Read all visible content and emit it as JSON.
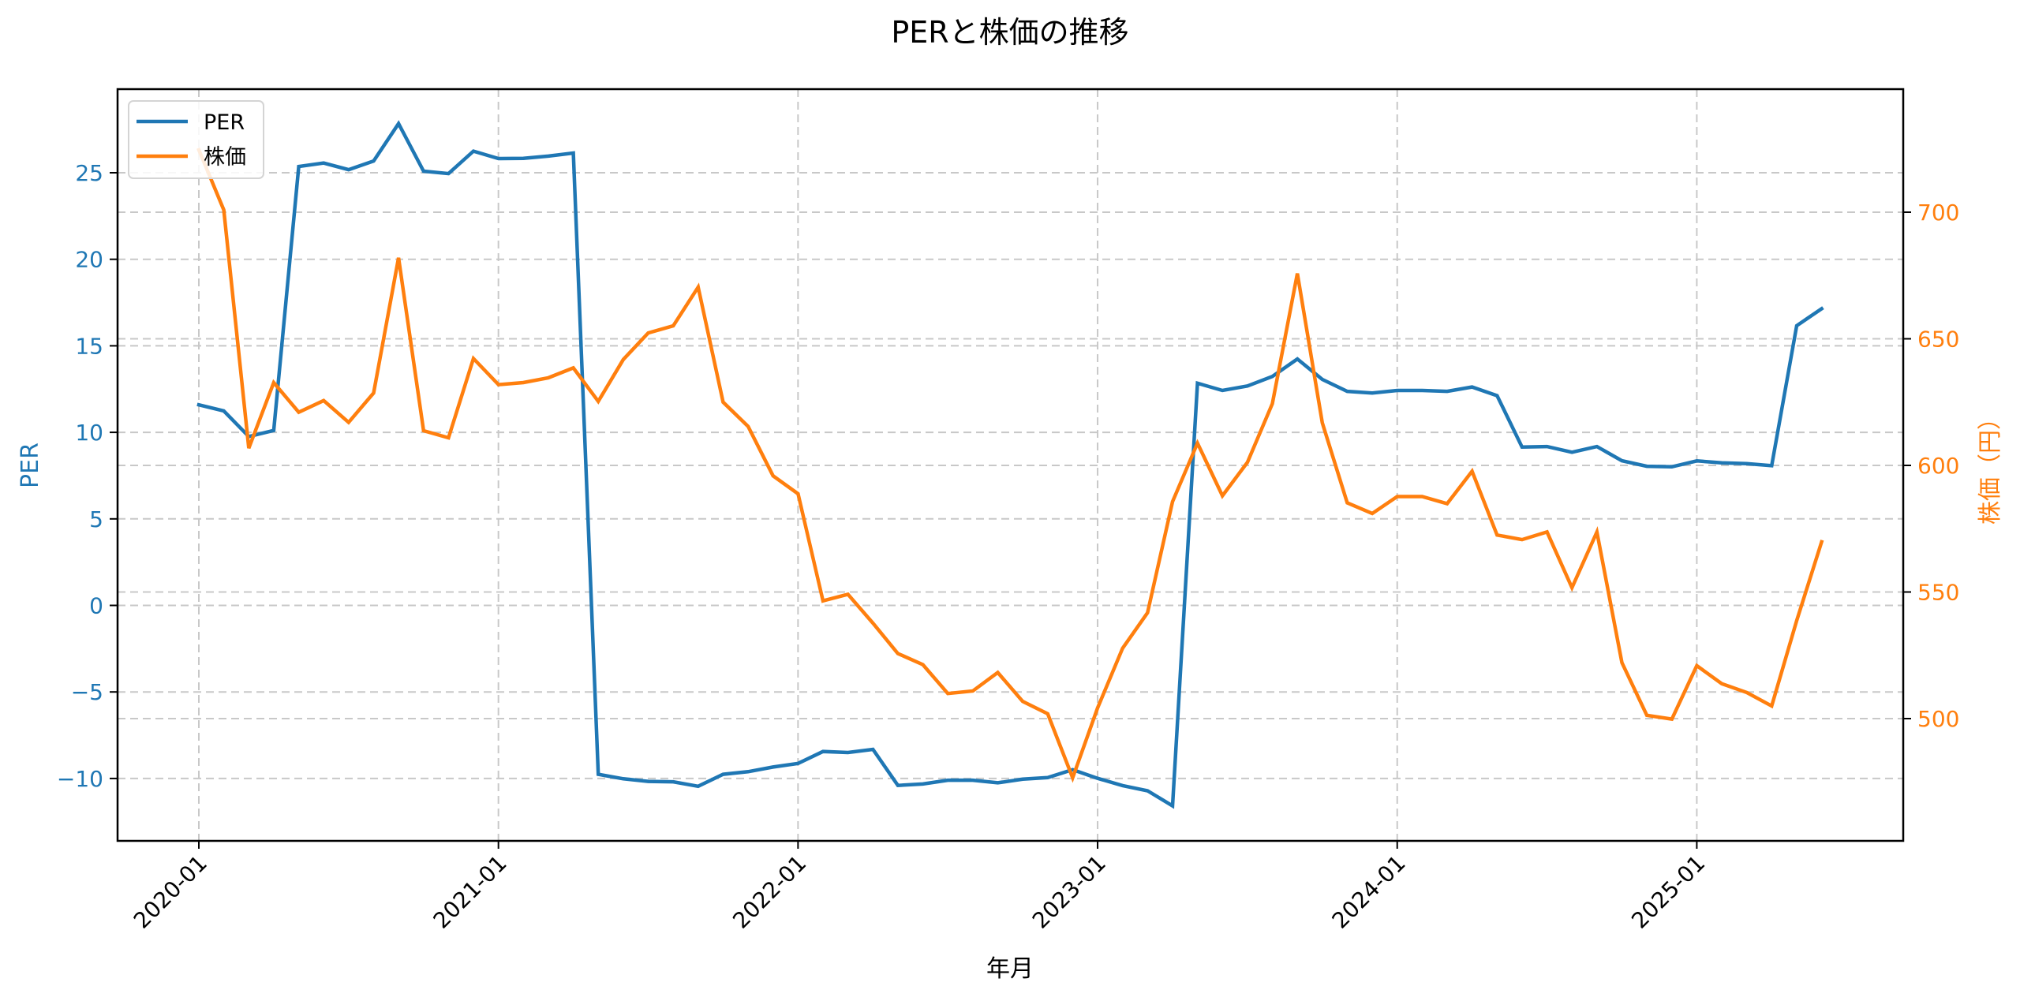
{
  "chart_data": {
    "type": "line",
    "title": "PERと株価の推移",
    "xlabel": "年月",
    "ylabel_left": "PER",
    "ylabel_right": "株価（円）",
    "x_tick_labels": [
      "2020-01",
      "2021-01",
      "2022-01",
      "2023-01",
      "2024-01",
      "2025-01"
    ],
    "y_left_ticks": [
      -10,
      -5,
      0,
      5,
      10,
      15,
      20,
      25
    ],
    "y_right_ticks": [
      500,
      550,
      600,
      650,
      700
    ],
    "ylim_left": [
      -13.5,
      29.5
    ],
    "ylim_right": [
      455,
      745
    ],
    "grid": true,
    "legend_position": "upper left",
    "legend": [
      "PER",
      "株価"
    ],
    "x": [
      "2020-01",
      "2020-02",
      "2020-03",
      "2020-04",
      "2020-05",
      "2020-06",
      "2020-07",
      "2020-08",
      "2020-09",
      "2020-10",
      "2020-11",
      "2020-12",
      "2021-01",
      "2021-02",
      "2021-03",
      "2021-04",
      "2021-05",
      "2021-06",
      "2021-07",
      "2021-08",
      "2021-09",
      "2021-10",
      "2021-11",
      "2021-12",
      "2022-01",
      "2022-02",
      "2022-03",
      "2022-04",
      "2022-05",
      "2022-06",
      "2022-07",
      "2022-08",
      "2022-09",
      "2022-10",
      "2022-11",
      "2022-12",
      "2023-01",
      "2023-02",
      "2023-03",
      "2023-04",
      "2023-05",
      "2023-06",
      "2023-07",
      "2023-08",
      "2023-09",
      "2023-10",
      "2023-11",
      "2023-12",
      "2024-01",
      "2024-02",
      "2024-03",
      "2024-04",
      "2024-05",
      "2024-06",
      "2024-07",
      "2024-08",
      "2024-09",
      "2024-10",
      "2024-11",
      "2024-12",
      "2025-01",
      "2025-02",
      "2025-03",
      "2025-04",
      "2025-05",
      "2025-06"
    ],
    "series": [
      {
        "name": "PER",
        "axis": "left",
        "color": "#1f77b4",
        "values": [
          11.59,
          11.24,
          9.76,
          10.11,
          25.36,
          25.56,
          25.18,
          25.68,
          27.84,
          25.09,
          24.95,
          26.25,
          25.82,
          25.83,
          25.96,
          26.14,
          -9.76,
          -10.02,
          -10.17,
          -10.19,
          -10.45,
          -9.76,
          -9.61,
          -9.34,
          -9.13,
          -8.44,
          -8.5,
          -8.32,
          -10.4,
          -10.32,
          -10.1,
          -10.1,
          -10.25,
          -10.04,
          -9.95,
          -9.49,
          -9.99,
          -10.41,
          -10.71,
          -11.58,
          12.84,
          12.42,
          12.68,
          13.23,
          14.24,
          13.06,
          12.37,
          12.27,
          12.42,
          12.42,
          12.37,
          12.62,
          12.12,
          9.15,
          9.18,
          8.85,
          9.18,
          8.36,
          8.04,
          8.01,
          8.35,
          8.24,
          8.19,
          8.07,
          16.16,
          17.14
        ]
      },
      {
        "name": "株価",
        "axis": "right",
        "color": "#ff7f0e",
        "values": [
          724.6,
          700.9,
          606.8,
          632.7,
          621.0,
          625.6,
          617.0,
          628.6,
          682.0,
          613.7,
          610.9,
          642.2,
          631.9,
          632.7,
          634.6,
          638.5,
          625.3,
          641.8,
          652.3,
          655.1,
          670.4,
          625.0,
          615.4,
          595.9,
          588.8,
          546.5,
          549.1,
          537.7,
          525.7,
          521.3,
          509.9,
          510.9,
          518.2,
          506.8,
          501.9,
          476.6,
          504.2,
          527.8,
          541.8,
          585.7,
          608.8,
          588.0,
          601.2,
          624.4,
          675.8,
          616.8,
          585.2,
          581.0,
          587.7,
          587.7,
          584.9,
          597.7,
          572.5,
          570.7,
          573.7,
          551.7,
          573.7,
          522.1,
          501.3,
          499.8,
          520.9,
          513.8,
          510.3,
          505.0,
          538.7,
          569.8
        ]
      }
    ]
  },
  "colors": {
    "per": "#1f77b4",
    "price": "#ff7f0e",
    "grid": "#c8c8c8",
    "axis": "#000000"
  }
}
